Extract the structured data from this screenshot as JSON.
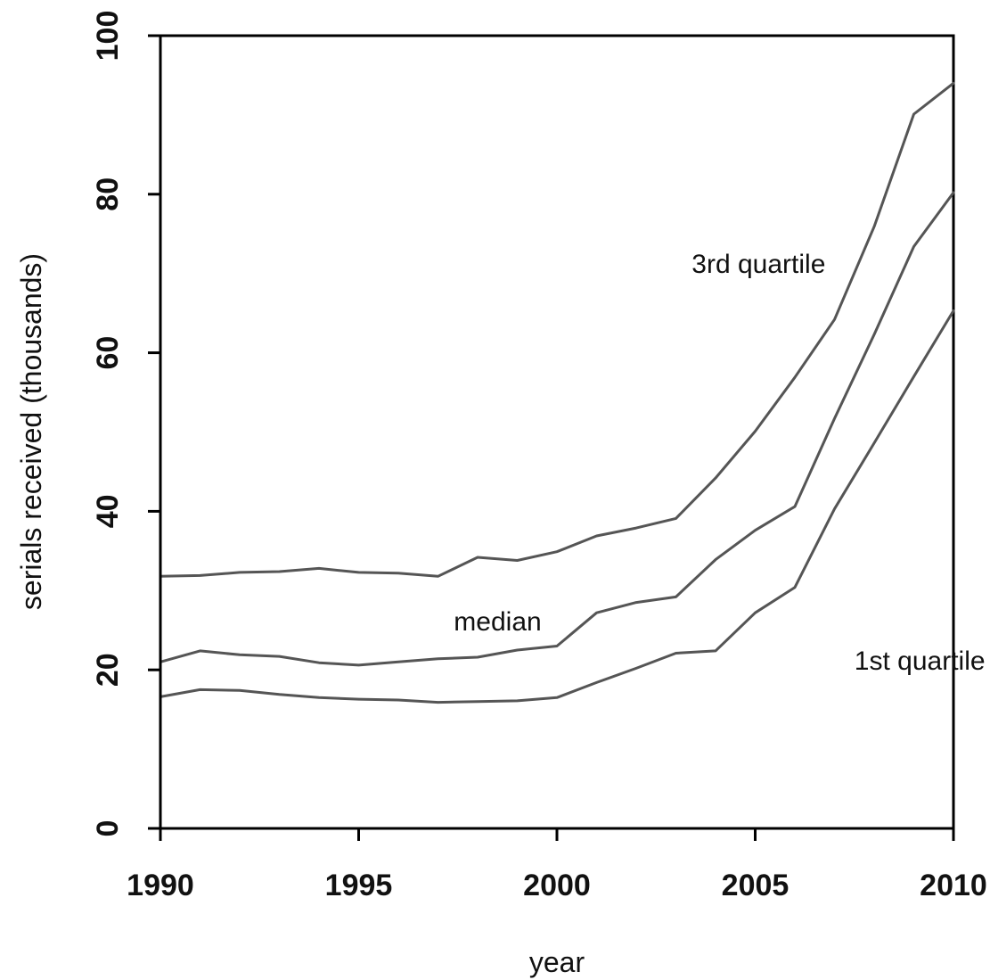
{
  "chart_data": {
    "type": "line",
    "xlabel": "year",
    "ylabel": "serials received (thousands)",
    "xlim": [
      1990,
      2010
    ],
    "ylim": [
      0,
      100
    ],
    "x_ticks": [
      "1990",
      "1995",
      "2000",
      "2005",
      "2010"
    ],
    "y_ticks": [
      "0",
      "20",
      "40",
      "60",
      "80",
      "100"
    ],
    "grid": false,
    "x": [
      1990,
      1991,
      1992,
      1993,
      1994,
      1995,
      1996,
      1997,
      1998,
      1999,
      2000,
      2001,
      2002,
      2003,
      2004,
      2005,
      2006,
      2007,
      2008,
      2009,
      2010
    ],
    "series": [
      {
        "name": "3rd quartile",
        "values": [
          31.8,
          31.9,
          32.3,
          32.4,
          32.8,
          32.3,
          32.2,
          31.8,
          34.2,
          33.8,
          34.9,
          36.9,
          37.9,
          39.1,
          44.2,
          50.1,
          56.9,
          64.2,
          75.9,
          90.1,
          94.0
        ]
      },
      {
        "name": "median",
        "values": [
          21.0,
          22.4,
          21.9,
          21.7,
          20.9,
          20.6,
          21.0,
          21.4,
          21.6,
          22.5,
          23.0,
          27.2,
          28.5,
          29.2,
          33.9,
          37.6,
          40.6,
          51.7,
          62.3,
          73.4,
          80.2
        ]
      },
      {
        "name": "1st quartile",
        "values": [
          16.6,
          17.5,
          17.4,
          16.9,
          16.5,
          16.3,
          16.2,
          15.9,
          16.0,
          16.1,
          16.5,
          18.4,
          20.2,
          22.1,
          22.4,
          27.2,
          30.4,
          40.3,
          48.6,
          57.0,
          65.3
        ]
      }
    ],
    "annotations": [
      {
        "text": "3rd quartile",
        "x": 2003.4,
        "y": 70.1
      },
      {
        "text": "median",
        "x": 1997.4,
        "y": 25.0
      },
      {
        "text": "1st quartile",
        "x": 2007.5,
        "y": 20.0
      }
    ]
  }
}
